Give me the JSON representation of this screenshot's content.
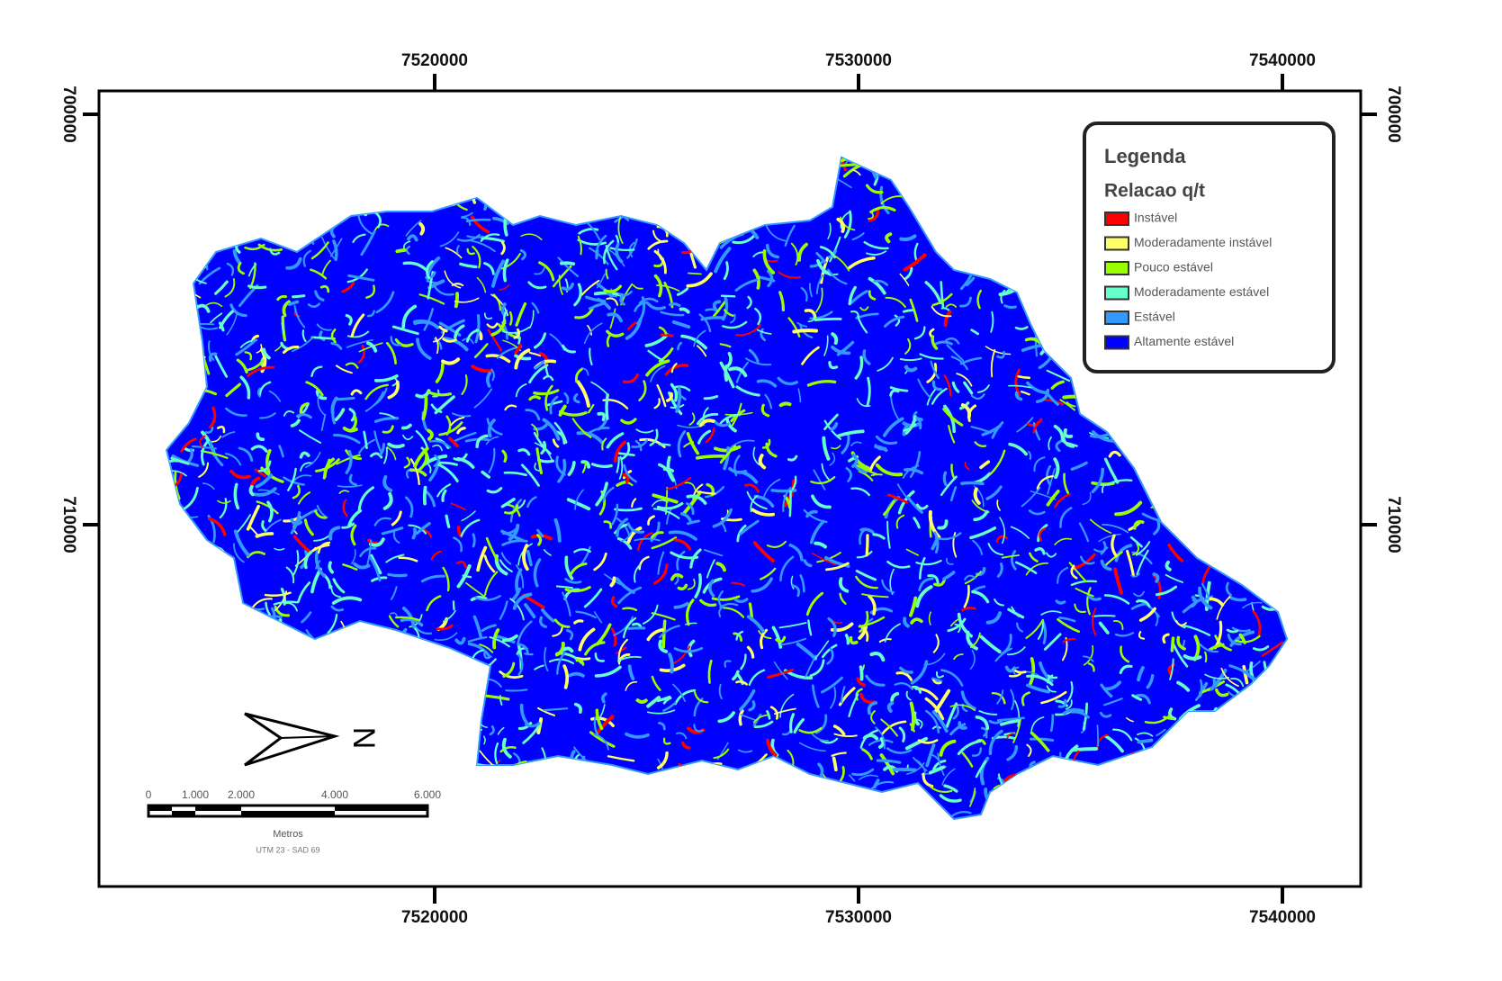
{
  "map": {
    "x_labels": [
      7520000,
      7530000,
      7540000
    ],
    "y_labels": [
      700000,
      710000
    ],
    "legend": {
      "title": "Legenda",
      "subtitle": "Relacao q/t",
      "items": [
        {
          "label": "Instável",
          "color": "#ff0000"
        },
        {
          "label": "Moderadamente instável",
          "color": "#ffff66"
        },
        {
          "label": "Pouco estável",
          "color": "#99ff00"
        },
        {
          "label": "Moderadamente estável",
          "color": "#66ffcc"
        },
        {
          "label": "Estável",
          "color": "#3399ff"
        },
        {
          "label": "Altamente estável",
          "color": "#0000ff"
        }
      ]
    },
    "scale_bar": {
      "labels": [
        "0",
        "1.000",
        "2.000",
        "4.000",
        "6.000"
      ],
      "unit": "Metros",
      "projection": "UTM 23 - SAD 69"
    },
    "north": "N"
  }
}
